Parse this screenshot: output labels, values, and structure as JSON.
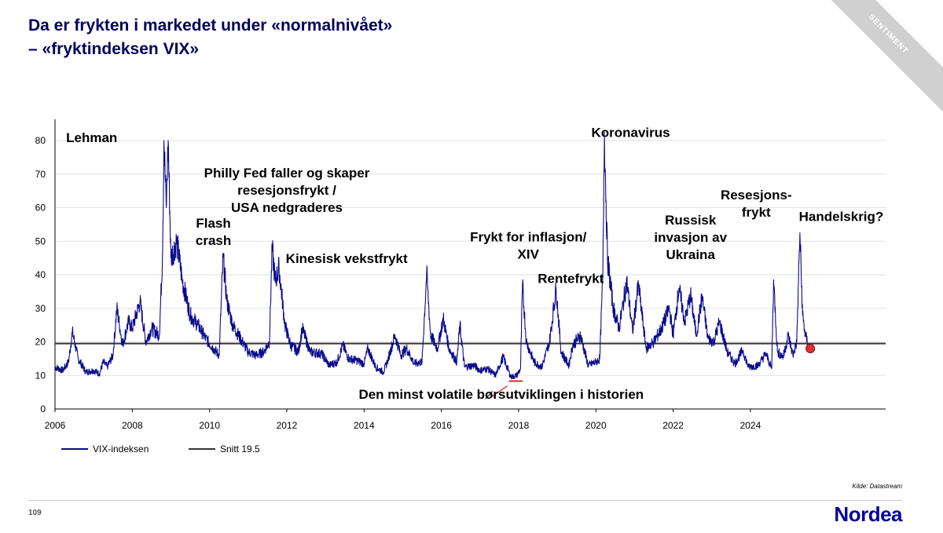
{
  "header": {
    "title_line1": "Da er frykten i markedet under «normalnivået»",
    "title_line2": " – «fryktindeksen VIX»",
    "section_tag": "SENTIMENT"
  },
  "footer": {
    "source": "Kilde: Datastream",
    "page_number": "109",
    "logo": "Nordea"
  },
  "colors": {
    "series": "#0a0a8c",
    "average": "#333333",
    "title": "#00005e",
    "marker": "#e03030"
  },
  "chart_data": {
    "type": "line",
    "title": "",
    "xlabel": "",
    "ylabel": "",
    "xlim": [
      2006,
      2027.5
    ],
    "ylim": [
      0,
      85
    ],
    "x_ticks": [
      2006,
      2008,
      2010,
      2012,
      2014,
      2016,
      2018,
      2020,
      2022,
      2024
    ],
    "y_ticks": [
      0,
      10,
      20,
      30,
      40,
      50,
      60,
      70,
      80
    ],
    "legend_position": "bottom-left",
    "series": [
      {
        "name": "VIX-indeksen",
        "points": [
          [
            2006.0,
            12.5
          ],
          [
            2006.2,
            11.5
          ],
          [
            2006.35,
            14.0
          ],
          [
            2006.45,
            23.0
          ],
          [
            2006.6,
            15.0
          ],
          [
            2006.8,
            11.0
          ],
          [
            2007.0,
            11.5
          ],
          [
            2007.15,
            10.5
          ],
          [
            2007.25,
            14.0
          ],
          [
            2007.35,
            12.5
          ],
          [
            2007.5,
            16.0
          ],
          [
            2007.6,
            30.0
          ],
          [
            2007.75,
            19.0
          ],
          [
            2007.9,
            26.0
          ],
          [
            2008.0,
            24.0
          ],
          [
            2008.2,
            32.0
          ],
          [
            2008.35,
            20.0
          ],
          [
            2008.5,
            24.0
          ],
          [
            2008.7,
            22.0
          ],
          [
            2008.78,
            45.0
          ],
          [
            2008.82,
            80.0
          ],
          [
            2008.88,
            60.0
          ],
          [
            2008.93,
            80.0
          ],
          [
            2009.0,
            45.0
          ],
          [
            2009.15,
            50.0
          ],
          [
            2009.3,
            38.0
          ],
          [
            2009.5,
            28.0
          ],
          [
            2009.7,
            25.0
          ],
          [
            2009.9,
            21.0
          ],
          [
            2010.1,
            18.0
          ],
          [
            2010.25,
            16.0
          ],
          [
            2010.35,
            45.5
          ],
          [
            2010.45,
            32.0
          ],
          [
            2010.6,
            25.0
          ],
          [
            2010.8,
            21.0
          ],
          [
            2011.0,
            17.0
          ],
          [
            2011.2,
            16.0
          ],
          [
            2011.4,
            17.0
          ],
          [
            2011.55,
            20.0
          ],
          [
            2011.62,
            48.0
          ],
          [
            2011.7,
            38.0
          ],
          [
            2011.8,
            42.0
          ],
          [
            2011.95,
            25.0
          ],
          [
            2012.1,
            19.0
          ],
          [
            2012.3,
            17.0
          ],
          [
            2012.4,
            24.0
          ],
          [
            2012.6,
            17.0
          ],
          [
            2012.9,
            16.5
          ],
          [
            2013.1,
            13.0
          ],
          [
            2013.3,
            14.0
          ],
          [
            2013.45,
            19.0
          ],
          [
            2013.6,
            15.0
          ],
          [
            2013.8,
            14.5
          ],
          [
            2014.0,
            13.5
          ],
          [
            2014.1,
            18.0
          ],
          [
            2014.3,
            12.5
          ],
          [
            2014.5,
            11.0
          ],
          [
            2014.6,
            14.0
          ],
          [
            2014.8,
            22.0
          ],
          [
            2014.95,
            16.0
          ],
          [
            2015.1,
            18.0
          ],
          [
            2015.3,
            13.5
          ],
          [
            2015.5,
            14.0
          ],
          [
            2015.62,
            40.5
          ],
          [
            2015.72,
            22.0
          ],
          [
            2015.9,
            18.0
          ],
          [
            2016.05,
            27.0
          ],
          [
            2016.2,
            18.0
          ],
          [
            2016.4,
            14.0
          ],
          [
            2016.48,
            25.0
          ],
          [
            2016.6,
            12.5
          ],
          [
            2016.85,
            13.0
          ],
          [
            2017.0,
            11.5
          ],
          [
            2017.2,
            12.0
          ],
          [
            2017.4,
            10.0
          ],
          [
            2017.6,
            15.5
          ],
          [
            2017.8,
            9.5
          ],
          [
            2017.95,
            10.0
          ],
          [
            2018.05,
            12.0
          ],
          [
            2018.1,
            37.0
          ],
          [
            2018.2,
            20.0
          ],
          [
            2018.4,
            14.0
          ],
          [
            2018.6,
            12.5
          ],
          [
            2018.8,
            20.0
          ],
          [
            2018.97,
            36.0
          ],
          [
            2019.1,
            17.0
          ],
          [
            2019.3,
            13.0
          ],
          [
            2019.4,
            19.0
          ],
          [
            2019.6,
            22.0
          ],
          [
            2019.8,
            13.0
          ],
          [
            2020.0,
            14.0
          ],
          [
            2020.1,
            15.0
          ],
          [
            2020.18,
            40.0
          ],
          [
            2020.22,
            82.5
          ],
          [
            2020.3,
            45.0
          ],
          [
            2020.45,
            30.0
          ],
          [
            2020.6,
            24.0
          ],
          [
            2020.8,
            38.0
          ],
          [
            2020.95,
            23.0
          ],
          [
            2021.1,
            37.0
          ],
          [
            2021.3,
            18.0
          ],
          [
            2021.5,
            20.0
          ],
          [
            2021.7,
            24.0
          ],
          [
            2021.9,
            30.0
          ],
          [
            2022.0,
            22.0
          ],
          [
            2022.15,
            36.0
          ],
          [
            2022.3,
            26.0
          ],
          [
            2022.45,
            34.0
          ],
          [
            2022.6,
            22.0
          ],
          [
            2022.75,
            33.5
          ],
          [
            2022.9,
            21.0
          ],
          [
            2023.05,
            20.0
          ],
          [
            2023.2,
            26.0
          ],
          [
            2023.4,
            17.0
          ],
          [
            2023.6,
            13.5
          ],
          [
            2023.8,
            17.5
          ],
          [
            2023.95,
            12.5
          ],
          [
            2024.2,
            13.0
          ],
          [
            2024.4,
            16.5
          ],
          [
            2024.55,
            12.0
          ],
          [
            2024.6,
            38.5
          ],
          [
            2024.7,
            17.0
          ],
          [
            2024.85,
            15.5
          ],
          [
            2024.98,
            22.0
          ],
          [
            2025.1,
            16.0
          ],
          [
            2025.2,
            20.0
          ],
          [
            2025.28,
            52.5
          ],
          [
            2025.35,
            28.0
          ],
          [
            2025.42,
            22.0
          ],
          [
            2025.5,
            19.0
          ],
          [
            2025.55,
            18.0
          ]
        ]
      },
      {
        "name": "Snitt 19.5",
        "value": 19.5
      }
    ],
    "last_point": [
      2025.55,
      18.0
    ],
    "highlight_segment": {
      "x": [
        2017.75,
        2018.1
      ],
      "y": 8.3
    },
    "annotations": [
      {
        "id": "lehman",
        "x": 2006.95,
        "y": 79.5,
        "lines": [
          "Lehman"
        ]
      },
      {
        "id": "flash",
        "x": 2010.1,
        "y": 54.0,
        "lines": [
          "Flash",
          "crash"
        ]
      },
      {
        "id": "philly",
        "x": 2012.0,
        "y": 69.0,
        "lines": [
          "Philly Fed faller og skaper",
          "resesjonsfrykt /",
          "USA nedgraderes"
        ]
      },
      {
        "id": "kinesisk",
        "x": 2013.55,
        "y": 43.5,
        "lines": [
          "Kinesisk vekstfrykt"
        ]
      },
      {
        "id": "inflasjon",
        "x": 2018.25,
        "y": 50.0,
        "lines": [
          "Frykt for inflasjon/",
          "XIV"
        ]
      },
      {
        "id": "rente",
        "x": 2019.35,
        "y": 37.5,
        "lines": [
          "Rentefrykt"
        ]
      },
      {
        "id": "korona",
        "x": 2020.9,
        "y": 81.0,
        "lines": [
          "Koronavirus"
        ]
      },
      {
        "id": "russisk",
        "x": 2022.45,
        "y": 55.0,
        "lines": [
          "Russisk",
          "invasjon av",
          "Ukraina"
        ]
      },
      {
        "id": "resesjon",
        "x": 2024.15,
        "y": 62.5,
        "lines": [
          "Resesjons-",
          "frykt"
        ]
      },
      {
        "id": "handel",
        "x": 2026.35,
        "y": 56.0,
        "lines": [
          "Handelskrig?"
        ]
      },
      {
        "id": "minst",
        "x": 2017.55,
        "y": 3.0,
        "lines": [
          "Den minst volatile børsutviklingen i historien"
        ]
      }
    ]
  }
}
